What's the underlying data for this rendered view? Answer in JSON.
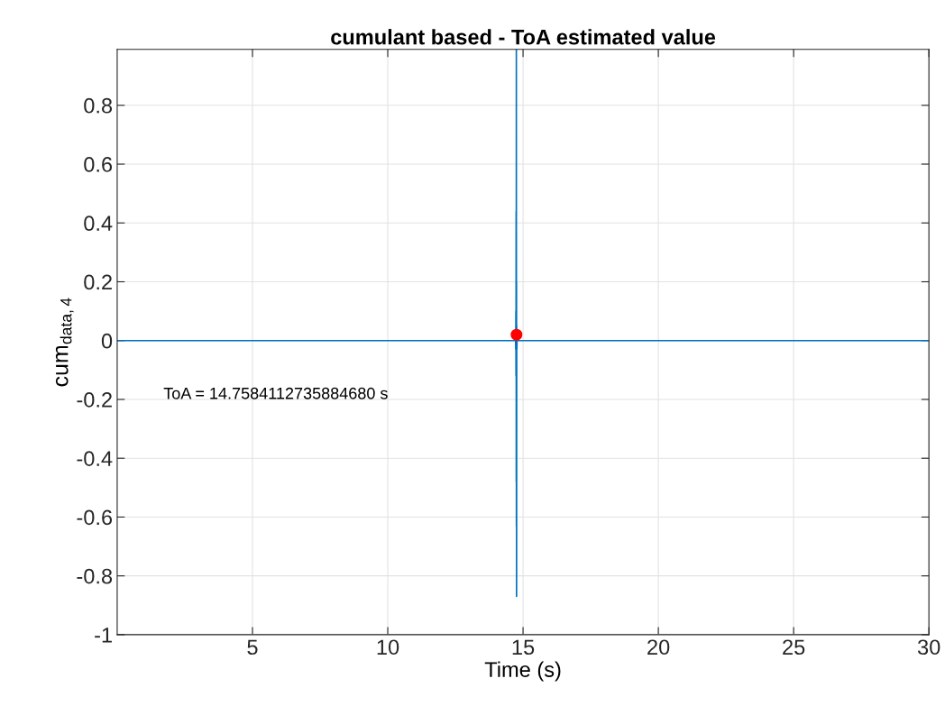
{
  "chart_data": {
    "type": "line",
    "title": "cumulant based - ToA estimated value",
    "xlabel": "Time (s)",
    "ylabel": "cum$_{data,4}$",
    "series": [
      {
        "color": "#0072bd",
        "x": [
          0,
          14.7,
          14.72,
          14.73,
          14.735,
          14.74,
          14.745,
          14.75,
          14.752,
          14.755,
          14.758,
          14.76,
          14.765,
          14.77,
          14.78,
          14.8,
          30
        ],
        "values": [
          0,
          0,
          0.02,
          -0.03,
          0.1,
          -0.12,
          0.44,
          -0.48,
          0.99,
          -0.63,
          0.2,
          -0.87,
          0.05,
          -0.03,
          0.01,
          0,
          0
        ]
      },
      {
        "type": "scatter",
        "color": "#ff0000",
        "marker": "circle",
        "x": [
          14.758411273588468
        ],
        "values": [
          0.02
        ]
      }
    ],
    "annotations": [
      "ToA = 14.7584112735884680 s"
    ],
    "xlim": [
      0,
      30
    ],
    "ylim": [
      -1,
      0.99
    ],
    "xticks": [
      5,
      10,
      15,
      20,
      25,
      30
    ],
    "yticks": [
      -1,
      -0.8,
      -0.6,
      -0.4,
      -0.2,
      0,
      0.2,
      0.4,
      0.6,
      0.8
    ],
    "grid": true
  }
}
